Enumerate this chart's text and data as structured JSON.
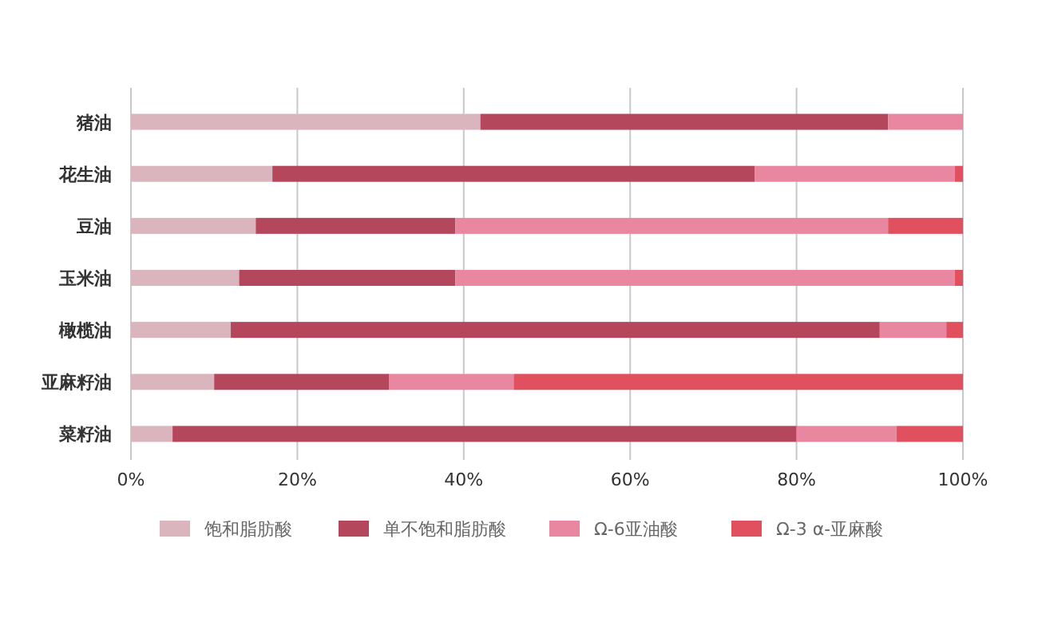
{
  "chart_data": {
    "type": "bar",
    "orientation": "horizontal",
    "stacked": true,
    "categories": [
      "猪油",
      "花生油",
      "豆油",
      "玉米油",
      "橄榄油",
      "亚麻籽油",
      "菜籽油"
    ],
    "series": [
      {
        "name": "饱和脂肪酸",
        "color": "#dbb5be",
        "values": [
          42,
          17,
          15,
          13,
          12,
          10,
          5
        ]
      },
      {
        "name": "单不饱和脂肪酸",
        "color": "#b5475d",
        "values": [
          49,
          58,
          24,
          26,
          78,
          21,
          75
        ]
      },
      {
        "name": "Ω-6亚油酸",
        "color": "#e8879f",
        "values": [
          9,
          24,
          52,
          60,
          8,
          15,
          12
        ]
      },
      {
        "name": "Ω-3 α-亚麻酸",
        "color": "#e0505f",
        "values": [
          0,
          1,
          9,
          1,
          2,
          54,
          8
        ]
      }
    ],
    "xlim": [
      0,
      100
    ],
    "xticks": [
      {
        "value": 0,
        "label": "0%"
      },
      {
        "value": 20,
        "label": "20%"
      },
      {
        "value": 40,
        "label": "40%"
      },
      {
        "value": 60,
        "label": "60%"
      },
      {
        "value": 80,
        "label": "80%"
      },
      {
        "value": 100,
        "label": "100%"
      }
    ],
    "grid": "x",
    "legend": "bottom"
  }
}
